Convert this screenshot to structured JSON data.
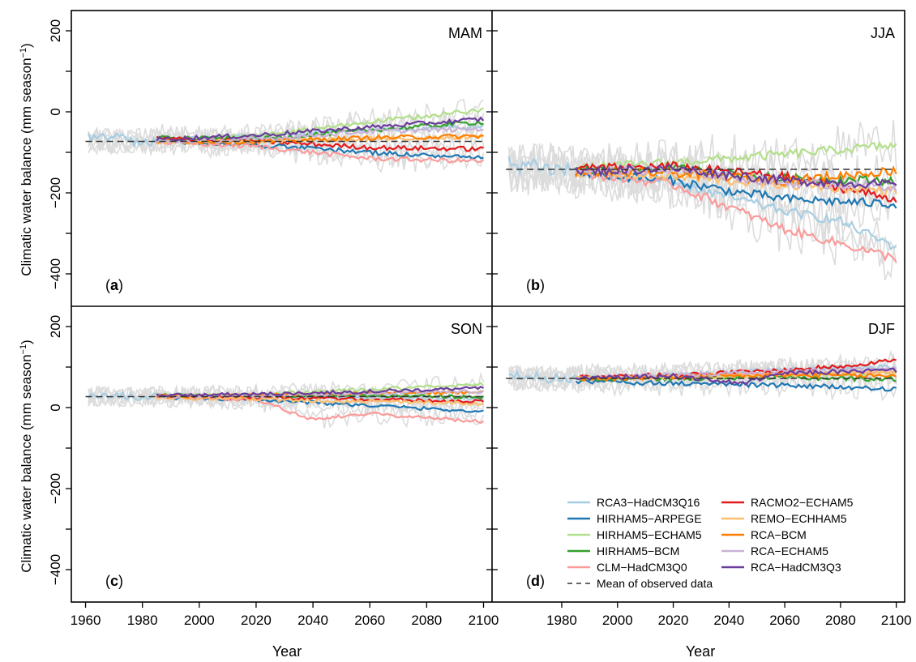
{
  "figure": {
    "xlabel": "Year",
    "ylabel_text": "Climatic water balance (mm season",
    "ylabel_sup": "−1",
    "ylabel_close": ")"
  },
  "chart_data": {
    "type": "line",
    "xlim": [
      1955,
      2103
    ],
    "ylim": [
      -480,
      250
    ],
    "x_ticks": [
      1960,
      1980,
      2000,
      2020,
      2040,
      2060,
      2080,
      2100
    ],
    "x_ticks_right": [
      1980,
      2000,
      2020,
      2040,
      2060,
      2080,
      2100
    ],
    "y_ticks": [
      200,
      0,
      -200,
      -400
    ],
    "y_tick_labels": [
      "200",
      "0",
      "−200",
      "−400"
    ],
    "legend_position": "bottom-right",
    "legend": [
      {
        "name": "RCA3−HadCM3Q16",
        "color": "#a6cee3"
      },
      {
        "name": "HIRHAM5−ARPEGE",
        "color": "#1f78b4"
      },
      {
        "name": "HIRHAM5−ECHAM5",
        "color": "#b2df8a"
      },
      {
        "name": "HIRHAM5−BCM",
        "color": "#33a02c"
      },
      {
        "name": "CLM−HadCM3Q0",
        "color": "#fb9a99"
      },
      {
        "name": "RACMO2−ECHAM5",
        "color": "#e31a1c"
      },
      {
        "name": "REMO−ECHHAM5",
        "color": "#fdbf6f"
      },
      {
        "name": "RCA−BCM",
        "color": "#ff7f00"
      },
      {
        "name": "RCA−ECHAM5",
        "color": "#cab2d6"
      },
      {
        "name": "RCA−HadCM3Q3",
        "color": "#6a3d9a"
      }
    ],
    "mean_label": "Mean of observed data",
    "raw_color": "#dcdcdc",
    "panels": [
      {
        "id": "a",
        "season": "MAM",
        "label": "a",
        "mean": -73,
        "hist_start": -62,
        "series": [
          {
            "name": "RCA3−HadCM3Q16",
            "color": "#a6cee3",
            "x": [
              1985,
              2020,
              2060,
              2100
            ],
            "y": [
              -70,
              -60,
              -45,
              -35
            ]
          },
          {
            "name": "HIRHAM5−ARPEGE",
            "color": "#1f78b4",
            "x": [
              1985,
              2020,
              2060,
              2080,
              2100
            ],
            "y": [
              -72,
              -82,
              -100,
              -108,
              -115
            ]
          },
          {
            "name": "HIRHAM5−ECHAM5",
            "color": "#b2df8a",
            "x": [
              1985,
              2020,
              2060,
              2100
            ],
            "y": [
              -70,
              -60,
              -25,
              5
            ]
          },
          {
            "name": "HIRHAM5−BCM",
            "color": "#33a02c",
            "x": [
              1985,
              2020,
              2060,
              2100
            ],
            "y": [
              -62,
              -68,
              -45,
              -25
            ]
          },
          {
            "name": "CLM−HadCM3Q0",
            "color": "#fb9a99",
            "x": [
              1985,
              2020,
              2060,
              2100
            ],
            "y": [
              -75,
              -85,
              -115,
              -122
            ]
          },
          {
            "name": "RACMO2−ECHAM5",
            "color": "#e31a1c",
            "x": [
              1985,
              2020,
              2060,
              2100
            ],
            "y": [
              -66,
              -72,
              -88,
              -92
            ]
          },
          {
            "name": "REMO−ECHHAM5",
            "color": "#fdbf6f",
            "x": [
              1985,
              2020,
              2060,
              2100
            ],
            "y": [
              -75,
              -72,
              -66,
              -62
            ]
          },
          {
            "name": "RCA−BCM",
            "color": "#ff7f00",
            "x": [
              1985,
              2020,
              2060,
              2100
            ],
            "y": [
              -72,
              -74,
              -64,
              -60
            ]
          },
          {
            "name": "RCA−ECHAM5",
            "color": "#cab2d6",
            "x": [
              1985,
              2020,
              2060,
              2100
            ],
            "y": [
              -75,
              -68,
              -48,
              -42
            ]
          },
          {
            "name": "RCA−HadCM3Q3",
            "color": "#6a3d9a",
            "x": [
              1985,
              2020,
              2060,
              2100
            ],
            "y": [
              -68,
              -58,
              -38,
              -18
            ]
          }
        ]
      },
      {
        "id": "b",
        "season": "JJA",
        "label": "b",
        "mean": -142,
        "hist_start": -130,
        "series": [
          {
            "name": "RCA3−HadCM3Q16",
            "color": "#a6cee3",
            "x": [
              1985,
              2020,
              2060,
              2080,
              2100
            ],
            "y": [
              -150,
              -175,
              -245,
              -270,
              -335
            ]
          },
          {
            "name": "HIRHAM5−ARPEGE",
            "color": "#1f78b4",
            "x": [
              1985,
              2020,
              2040,
              2060,
              2100
            ],
            "y": [
              -150,
              -170,
              -195,
              -215,
              -228
            ]
          },
          {
            "name": "HIRHAM5−ECHAM5",
            "color": "#b2df8a",
            "x": [
              1985,
              2020,
              2060,
              2100
            ],
            "y": [
              -140,
              -125,
              -105,
              -82
            ]
          },
          {
            "name": "HIRHAM5−BCM",
            "color": "#33a02c",
            "x": [
              1985,
              2020,
              2060,
              2100
            ],
            "y": [
              -145,
              -140,
              -165,
              -170
            ]
          },
          {
            "name": "CLM−HadCM3Q0",
            "color": "#fb9a99",
            "x": [
              1985,
              2020,
              2040,
              2060,
              2080,
              2100
            ],
            "y": [
              -150,
              -180,
              -235,
              -290,
              -325,
              -362
            ]
          },
          {
            "name": "RACMO2−ECHAM5",
            "color": "#e31a1c",
            "x": [
              1985,
              2020,
              2060,
              2100
            ],
            "y": [
              -140,
              -135,
              -160,
              -215
            ]
          },
          {
            "name": "REMO−ECHHAM5",
            "color": "#fdbf6f",
            "x": [
              1985,
              2020,
              2060,
              2100
            ],
            "y": [
              -150,
              -160,
              -180,
              -195
            ]
          },
          {
            "name": "RCA−BCM",
            "color": "#ff7f00",
            "x": [
              1985,
              2020,
              2060,
              2100
            ],
            "y": [
              -150,
              -150,
              -170,
              -145
            ]
          },
          {
            "name": "RCA−ECHAM5",
            "color": "#cab2d6",
            "x": [
              1985,
              2020,
              2060,
              2100
            ],
            "y": [
              -145,
              -145,
              -175,
              -185
            ]
          },
          {
            "name": "RCA−HadCM3Q3",
            "color": "#6a3d9a",
            "x": [
              1985,
              2020,
              2060,
              2100
            ],
            "y": [
              -148,
              -140,
              -170,
              -180
            ]
          }
        ]
      },
      {
        "id": "c",
        "season": "SON",
        "label": "c",
        "mean": 27,
        "hist_start": 30,
        "series": [
          {
            "name": "RCA3−HadCM3Q16",
            "color": "#a6cee3",
            "x": [
              1985,
              2020,
              2060,
              2100
            ],
            "y": [
              30,
              28,
              25,
              22
            ]
          },
          {
            "name": "HIRHAM5−ARPEGE",
            "color": "#1f78b4",
            "x": [
              1985,
              2020,
              2060,
              2100
            ],
            "y": [
              25,
              20,
              5,
              -10
            ]
          },
          {
            "name": "HIRHAM5−ECHAM5",
            "color": "#b2df8a",
            "x": [
              1985,
              2020,
              2060,
              2100
            ],
            "y": [
              30,
              32,
              45,
              58
            ]
          },
          {
            "name": "HIRHAM5−BCM",
            "color": "#33a02c",
            "x": [
              1985,
              2020,
              2060,
              2100
            ],
            "y": [
              30,
              28,
              30,
              25
            ]
          },
          {
            "name": "CLM−HadCM3Q0",
            "color": "#fb9a99",
            "x": [
              1985,
              2020,
              2040,
              2060,
              2100
            ],
            "y": [
              25,
              20,
              -30,
              -15,
              -35
            ]
          },
          {
            "name": "RACMO2−ECHAM5",
            "color": "#e31a1c",
            "x": [
              1985,
              2020,
              2060,
              2100
            ],
            "y": [
              30,
              25,
              20,
              15
            ]
          },
          {
            "name": "REMO−ECHHAM5",
            "color": "#fdbf6f",
            "x": [
              1985,
              2020,
              2060,
              2100
            ],
            "y": [
              25,
              20,
              15,
              10
            ]
          },
          {
            "name": "RCA−BCM",
            "color": "#ff7f00",
            "x": [
              1985,
              2020,
              2060,
              2100
            ],
            "y": [
              28,
              30,
              35,
              38
            ]
          },
          {
            "name": "RCA−ECHAM5",
            "color": "#cab2d6",
            "x": [
              1985,
              2020,
              2060,
              2100
            ],
            "y": [
              28,
              30,
              35,
              40
            ]
          },
          {
            "name": "RCA−HadCM3Q3",
            "color": "#6a3d9a",
            "x": [
              1985,
              2020,
              2060,
              2100
            ],
            "y": [
              30,
              33,
              40,
              48
            ]
          }
        ]
      },
      {
        "id": "d",
        "season": "DJF",
        "label": "d",
        "mean": 72,
        "hist_start": 78,
        "series": [
          {
            "name": "RCA3−HadCM3Q16",
            "color": "#a6cee3",
            "x": [
              1985,
              2020,
              2060,
              2100
            ],
            "y": [
              75,
              80,
              95,
              100
            ]
          },
          {
            "name": "HIRHAM5−ARPEGE",
            "color": "#1f78b4",
            "x": [
              1985,
              2020,
              2060,
              2100
            ],
            "y": [
              65,
              60,
              55,
              45
            ]
          },
          {
            "name": "HIRHAM5−ECHAM5",
            "color": "#b2df8a",
            "x": [
              1985,
              2020,
              2060,
              2100
            ],
            "y": [
              72,
              76,
              80,
              85
            ]
          },
          {
            "name": "HIRHAM5−BCM",
            "color": "#33a02c",
            "x": [
              1985,
              2020,
              2060,
              2100
            ],
            "y": [
              70,
              72,
              74,
              70
            ]
          },
          {
            "name": "CLM−HadCM3Q0",
            "color": "#fb9a99",
            "x": [
              1985,
              2020,
              2060,
              2100
            ],
            "y": [
              75,
              78,
              85,
              90
            ]
          },
          {
            "name": "RACMO2−ECHAM5",
            "color": "#e31a1c",
            "x": [
              1985,
              2020,
              2060,
              2080,
              2100
            ],
            "y": [
              75,
              80,
              92,
              102,
              118
            ]
          },
          {
            "name": "REMO−ECHHAM5",
            "color": "#fdbf6f",
            "x": [
              1985,
              2020,
              2060,
              2100
            ],
            "y": [
              72,
              75,
              82,
              88
            ]
          },
          {
            "name": "RCA−BCM",
            "color": "#ff7f00",
            "x": [
              1985,
              2020,
              2060,
              2100
            ],
            "y": [
              70,
              75,
              80,
              78
            ]
          },
          {
            "name": "RCA−ECHAM5",
            "color": "#cab2d6",
            "x": [
              1985,
              2020,
              2060,
              2100
            ],
            "y": [
              75,
              80,
              90,
              95
            ]
          },
          {
            "name": "RCA−HadCM3Q3",
            "color": "#6a3d9a",
            "x": [
              1985,
              2020,
              2045,
              2060,
              2100
            ],
            "y": [
              72,
              78,
              60,
              85,
              92
            ]
          }
        ]
      }
    ]
  }
}
